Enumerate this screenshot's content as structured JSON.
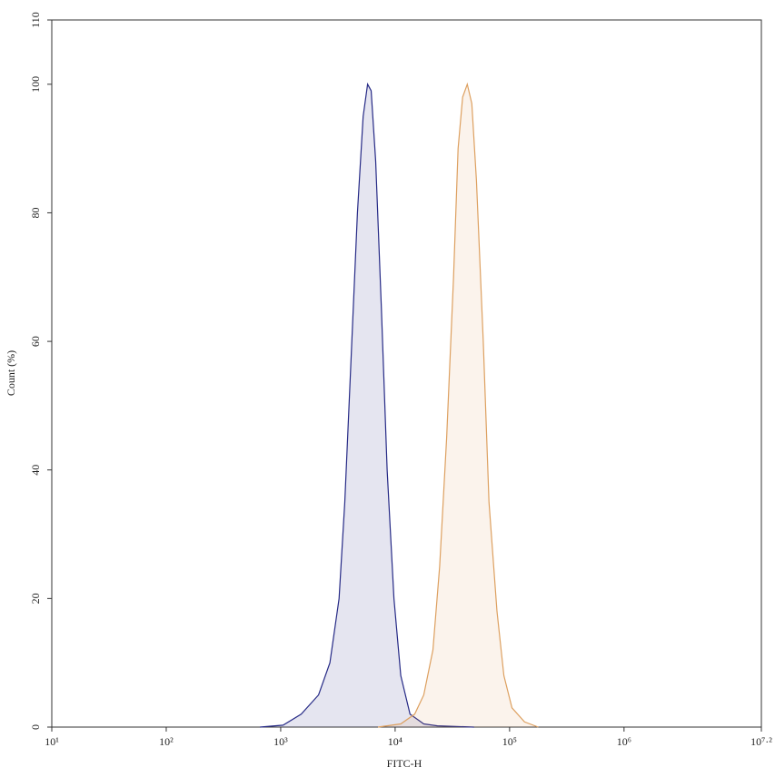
{
  "chart_data": {
    "type": "area",
    "xlabel": "FITC-H",
    "ylabel": "Count (%)",
    "log_x": true,
    "xlim": [
      10,
      15848932
    ],
    "ylim": [
      0,
      110
    ],
    "xticks": [
      {
        "value": 10,
        "label": "10¹"
      },
      {
        "value": 100,
        "label": "10²"
      },
      {
        "value": 1000,
        "label": "10³"
      },
      {
        "value": 10000,
        "label": "10⁴"
      },
      {
        "value": 100000,
        "label": "10⁵"
      },
      {
        "value": 1000000,
        "label": "10⁶"
      },
      {
        "value": 15848932,
        "label": "10⁷·²"
      }
    ],
    "yticks": [
      0,
      20,
      40,
      60,
      80,
      100,
      110
    ],
    "series": [
      {
        "color": "#262a86",
        "x": [
          660,
          1050,
          1510,
          2140,
          2690,
          3240,
          3630,
          4070,
          4680,
          5250,
          5750,
          6170,
          6760,
          7590,
          8510,
          9770,
          11200,
          13500,
          17800,
          23400,
          49000
        ],
        "values": [
          0,
          0.3,
          2,
          5,
          10,
          20,
          35,
          55,
          80,
          95,
          100,
          99,
          88,
          65,
          40,
          20,
          8,
          2,
          0.5,
          0.2,
          0
        ]
      },
      {
        "color": "#dda060",
        "x": [
          7080,
          11200,
          14800,
          17800,
          21400,
          24500,
          28200,
          32400,
          35500,
          38900,
          42700,
          46800,
          51300,
          58900,
          66100,
          77600,
          89100,
          105000,
          135000,
          178000
        ],
        "values": [
          0,
          0.5,
          2,
          5,
          12,
          25,
          45,
          70,
          90,
          98,
          100,
          97,
          85,
          60,
          35,
          18,
          8,
          3,
          0.8,
          0
        ]
      }
    ]
  }
}
